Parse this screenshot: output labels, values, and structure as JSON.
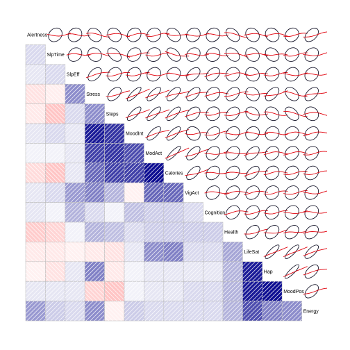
{
  "chart_data": {
    "type": "heatmap",
    "variables": [
      "Alertness",
      "SlpTime",
      "SlpEff",
      "Stress",
      "Steps",
      "MoodInt",
      "ModAct",
      "Calories",
      "VigAct",
      "Cognition",
      "Health",
      "LifeSat",
      "Hap",
      "MoodPos",
      "Energy"
    ],
    "lower_panel": "shaded correlation (blue = positive, red = negative, hatch direction = sign)",
    "upper_panel": "data ellipse with loess smooth",
    "colors": {
      "positive": "#00008b",
      "negative": "#ff6e6e",
      "neutral": "#ffffff",
      "ellipse": "#1a1a2e",
      "smooth": "#e0000b"
    },
    "correlations": [
      [
        1.0,
        0.15,
        0.1,
        -0.2,
        -0.15,
        0.1,
        0.05,
        -0.25,
        0.1,
        0.1,
        -0.35,
        -0.15,
        -0.1,
        0.1,
        0.4
      ],
      [
        0.15,
        1.0,
        0.15,
        -0.12,
        -0.4,
        0.15,
        0.05,
        -0.4,
        0.15,
        0.05,
        -0.3,
        -0.15,
        -0.2,
        0.1,
        0.2
      ],
      [
        0.1,
        0.15,
        1.0,
        0.45,
        0.15,
        0.1,
        0.1,
        0.1,
        0.4,
        0.3,
        0.05,
        -0.1,
        0.1,
        0.1,
        0.15
      ],
      [
        -0.2,
        -0.12,
        0.45,
        1.0,
        0.45,
        0.9,
        0.75,
        0.6,
        0.5,
        0.15,
        0.3,
        -0.15,
        0.5,
        -0.3,
        0.45
      ],
      [
        -0.15,
        -0.4,
        0.15,
        0.45,
        1.0,
        0.8,
        0.8,
        0.75,
        0.3,
        0.05,
        0.25,
        -0.2,
        -0.15,
        -0.4,
        -0.1
      ],
      [
        0.1,
        0.15,
        0.1,
        0.9,
        0.8,
        1.0,
        0.7,
        0.75,
        -0.1,
        0.25,
        0.15,
        0.1,
        0.05,
        0.05,
        0.2
      ],
      [
        0.05,
        0.05,
        0.1,
        0.75,
        0.8,
        0.7,
        1.0,
        0.95,
        0.6,
        0.2,
        0.2,
        0.45,
        0.1,
        0.1,
        0.15
      ],
      [
        -0.25,
        -0.4,
        0.1,
        0.6,
        0.75,
        0.75,
        0.95,
        1.0,
        0.6,
        0.2,
        0.2,
        0.5,
        0.1,
        0.1,
        0.15
      ],
      [
        0.1,
        0.15,
        0.4,
        0.5,
        0.3,
        -0.1,
        0.6,
        0.6,
        1.0,
        0.15,
        0.2,
        0.15,
        0.1,
        0.15,
        0.15
      ],
      [
        0.1,
        0.05,
        0.3,
        0.15,
        0.05,
        0.25,
        0.2,
        0.2,
        0.15,
        1.0,
        0.2,
        0.15,
        0.1,
        0.15,
        0.15
      ],
      [
        -0.35,
        -0.3,
        0.05,
        0.3,
        0.25,
        0.15,
        0.2,
        0.2,
        0.2,
        0.2,
        1.0,
        0.35,
        0.3,
        0.3,
        0.3
      ],
      [
        -0.15,
        -0.15,
        -0.1,
        -0.15,
        -0.2,
        0.1,
        0.45,
        0.5,
        0.15,
        0.15,
        0.35,
        1.0,
        0.9,
        0.9,
        0.7
      ],
      [
        -0.1,
        -0.2,
        0.1,
        0.5,
        -0.15,
        0.05,
        0.1,
        0.1,
        0.1,
        0.1,
        0.3,
        0.9,
        1.0,
        0.95,
        0.5
      ],
      [
        0.1,
        0.1,
        0.1,
        -0.3,
        -0.4,
        0.05,
        0.1,
        0.1,
        0.15,
        0.15,
        0.3,
        0.9,
        0.95,
        1.0,
        0.45
      ],
      [
        0.4,
        0.2,
        0.15,
        0.45,
        -0.1,
        0.2,
        0.15,
        0.15,
        0.15,
        0.15,
        0.3,
        0.7,
        0.5,
        0.45,
        1.0
      ]
    ]
  }
}
